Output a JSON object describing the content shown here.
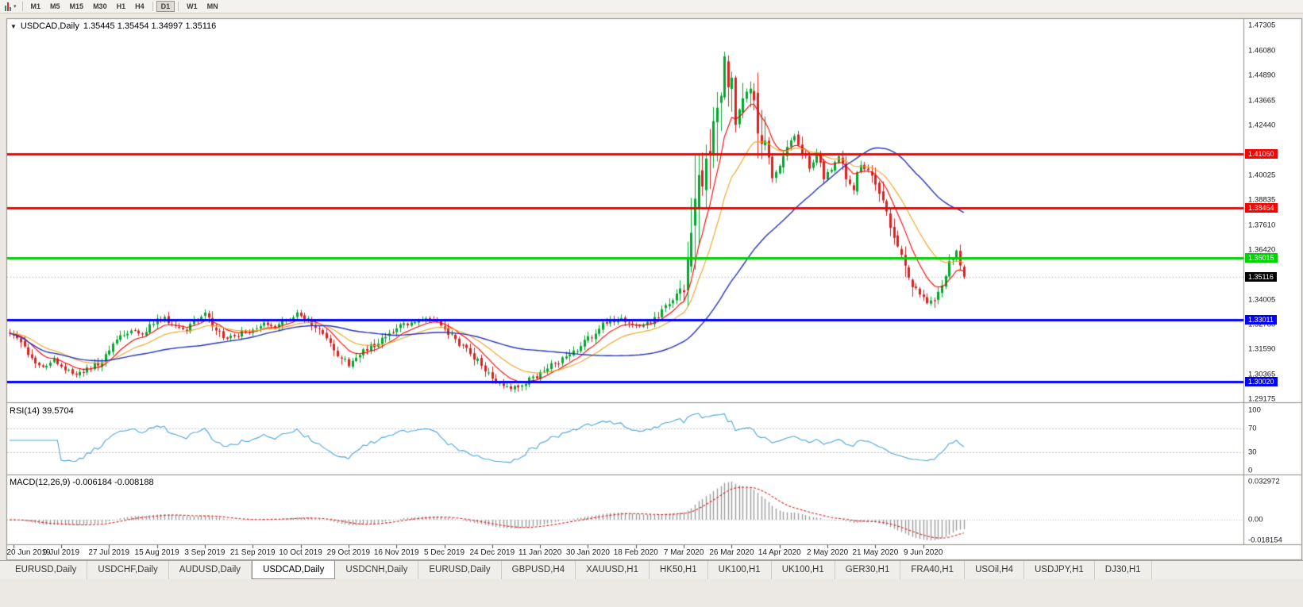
{
  "toolbar": {
    "timeframes": [
      "M1",
      "M5",
      "M15",
      "M30",
      "H1",
      "H4",
      "D1",
      "W1",
      "MN"
    ],
    "active_timeframe": "D1"
  },
  "chart_header": {
    "symbol": "USDCAD,Daily",
    "ohlc": "1.35445 1.35454 1.34997 1.35116"
  },
  "price_axis": {
    "ticks": [
      "1.47305",
      "1.46080",
      "1.44890",
      "1.43665",
      "1.42440",
      "1.40025",
      "1.38835",
      "1.37610",
      "1.36420",
      "1.34005",
      "1.32780",
      "1.31590",
      "1.30365",
      "1.29175"
    ]
  },
  "levels": [
    {
      "label": "1.41060",
      "value": 1.4106,
      "color": "#ff0000",
      "width": 3
    },
    {
      "label": "1.38464",
      "value": 1.38464,
      "color": "#ff0000",
      "width": 3
    },
    {
      "label": "1.36015",
      "value": 1.36015,
      "color": "#00d400",
      "width": 3
    },
    {
      "label": "1.33011",
      "value": 1.33011,
      "color": "#0000ff",
      "width": 3
    },
    {
      "label": "1.30020",
      "value": 1.3002,
      "color": "#0000ff",
      "width": 3
    }
  ],
  "current_price": {
    "label": "1.35116",
    "value": 1.35116,
    "tag_color": "#000000"
  },
  "rsi": {
    "label": "RSI(14) 39.5704",
    "value": 39.5704,
    "axis_labels": [
      "100",
      "70",
      "30",
      "0"
    ],
    "axis_values": [
      100,
      70,
      30,
      0
    ],
    "line_color": "#4ba6dd"
  },
  "macd": {
    "label": "MACD(12,26,9) -0.006184 -0.008188",
    "main_value": -0.006184,
    "signal_value": -0.008188,
    "axis_max_label": "0.032972",
    "axis_zero_label": "0.00",
    "axis_min_label": "-0.018154",
    "histogram_color": "#9c9c9c",
    "signal_color": "#dd2222"
  },
  "date_axis": [
    "20 Jun 2019",
    "9 Jul 2019",
    "27 Jul 2019",
    "15 Aug 2019",
    "3 Sep 2019",
    "21 Sep 2019",
    "10 Oct 2019",
    "29 Oct 2019",
    "16 Nov 2019",
    "5 Dec 2019",
    "24 Dec 2019",
    "11 Jan 2020",
    "30 Jan 2020",
    "18 Feb 2020",
    "7 Mar 2020",
    "26 Mar 2020",
    "14 Apr 2020",
    "2 May 2020",
    "21 May 2020",
    "9 Jun 2020"
  ],
  "tabs": {
    "items": [
      "EURUSD,Daily",
      "USDCHF,Daily",
      "AUDUSD,Daily",
      "USDCAD,Daily",
      "USDCNH,Daily",
      "EURUSD,Daily",
      "GBPUSD,H4",
      "XAUUSD,H1",
      "HK50,H1",
      "UK100,H1",
      "UK100,H1",
      "GER30,H1",
      "FRA40,H1",
      "USOil,H4",
      "USDJPY,H1",
      "DJ30,H1"
    ],
    "active_index": 3
  },
  "chart_data": {
    "type": "candlestick",
    "symbol": "USDCAD",
    "timeframe": "Daily",
    "last_ohlc": {
      "open": 1.35445,
      "high": 1.35454,
      "low": 1.34997,
      "close": 1.35116
    },
    "visible_price_range": [
      1.29175,
      1.47305
    ],
    "visible_date_range": [
      "20 Jun 2019",
      "mid Jun 2020"
    ],
    "n_candles": 260,
    "candles_per_date_tick": 13,
    "colors": {
      "up": "#00a82e",
      "down": "#de1f1f"
    },
    "anchors": [
      [
        0,
        1.3245
      ],
      [
        3,
        1.3195
      ],
      [
        6,
        1.312
      ],
      [
        9,
        1.3075
      ],
      [
        12,
        1.311
      ],
      [
        15,
        1.3068
      ],
      [
        18,
        1.3035
      ],
      [
        21,
        1.3058
      ],
      [
        24,
        1.3092
      ],
      [
        27,
        1.3155
      ],
      [
        30,
        1.322
      ],
      [
        33,
        1.3252
      ],
      [
        36,
        1.3228
      ],
      [
        39,
        1.3292
      ],
      [
        42,
        1.3312
      ],
      [
        45,
        1.3268
      ],
      [
        48,
        1.3252
      ],
      [
        51,
        1.3302
      ],
      [
        53,
        1.333
      ],
      [
        56,
        1.3242
      ],
      [
        59,
        1.321
      ],
      [
        62,
        1.3232
      ],
      [
        66,
        1.326
      ],
      [
        69,
        1.3292
      ],
      [
        72,
        1.3268
      ],
      [
        75,
        1.3305
      ],
      [
        78,
        1.3332
      ],
      [
        81,
        1.3298
      ],
      [
        84,
        1.3252
      ],
      [
        87,
        1.318
      ],
      [
        90,
        1.312
      ],
      [
        92,
        1.3082
      ],
      [
        95,
        1.313
      ],
      [
        98,
        1.3172
      ],
      [
        101,
        1.3212
      ],
      [
        104,
        1.3252
      ],
      [
        107,
        1.3282
      ],
      [
        110,
        1.3296
      ],
      [
        113,
        1.3306
      ],
      [
        116,
        1.3282
      ],
      [
        118,
        1.3255
      ],
      [
        121,
        1.3196
      ],
      [
        124,
        1.316
      ],
      [
        127,
        1.3105
      ],
      [
        130,
        1.303
      ],
      [
        133,
        1.2986
      ],
      [
        136,
        1.2966
      ],
      [
        139,
        1.2986
      ],
      [
        142,
        1.302
      ],
      [
        145,
        1.3062
      ],
      [
        148,
        1.3092
      ],
      [
        151,
        1.3116
      ],
      [
        154,
        1.3162
      ],
      [
        157,
        1.3216
      ],
      [
        160,
        1.3266
      ],
      [
        163,
        1.3296
      ],
      [
        166,
        1.3302
      ],
      [
        169,
        1.327
      ],
      [
        172,
        1.3272
      ],
      [
        175,
        1.3312
      ],
      [
        178,
        1.3372
      ],
      [
        181,
        1.3422
      ],
      [
        183,
        1.3452
      ],
      [
        185,
        1.3602
      ],
      [
        187,
        1.3872
      ],
      [
        189,
        1.4122
      ],
      [
        190,
        1.4052
      ],
      [
        192,
        1.4352
      ],
      [
        194,
        1.4602
      ],
      [
        195,
        1.4482
      ],
      [
        197,
        1.4282
      ],
      [
        199,
        1.4362
      ],
      [
        201,
        1.4422
      ],
      [
        203,
        1.4252
      ],
      [
        205,
        1.4082
      ],
      [
        207,
        1.3982
      ],
      [
        209,
        1.4042
      ],
      [
        211,
        1.4142
      ],
      [
        213,
        1.4192
      ],
      [
        215,
        1.4122
      ],
      [
        217,
        1.4042
      ],
      [
        219,
        1.4102
      ],
      [
        221,
        1.4002
      ],
      [
        223,
        1.4032
      ],
      [
        225,
        1.4092
      ],
      [
        227,
        1.3992
      ],
      [
        229,
        1.3942
      ],
      [
        231,
        1.4062
      ],
      [
        233,
        1.4012
      ],
      [
        235,
        1.3972
      ],
      [
        237,
        1.3892
      ],
      [
        239,
        1.3782
      ],
      [
        241,
        1.3692
      ],
      [
        243,
        1.3592
      ],
      [
        245,
        1.3492
      ],
      [
        247,
        1.3432
      ],
      [
        249,
        1.3392
      ],
      [
        251,
        1.3402
      ],
      [
        253,
        1.3482
      ],
      [
        255,
        1.3562
      ],
      [
        256,
        1.3602
      ],
      [
        257,
        1.3626
      ],
      [
        258,
        1.3572
      ],
      [
        259,
        1.3512
      ]
    ],
    "high_vol_range": [
      184,
      206
    ],
    "high_vol_mult": 2.0,
    "moving_averages": [
      {
        "name": "ma-fast",
        "type": "ema",
        "period": 9,
        "color": "#ff0000"
      },
      {
        "name": "ma-medium",
        "type": "ema",
        "period": 20,
        "color": "#eea320"
      },
      {
        "name": "ma-slow",
        "type": "sma",
        "period": 50,
        "color": "#2433c0"
      }
    ],
    "rsi_period": 14,
    "macd_params": [
      12,
      26,
      9
    ]
  }
}
